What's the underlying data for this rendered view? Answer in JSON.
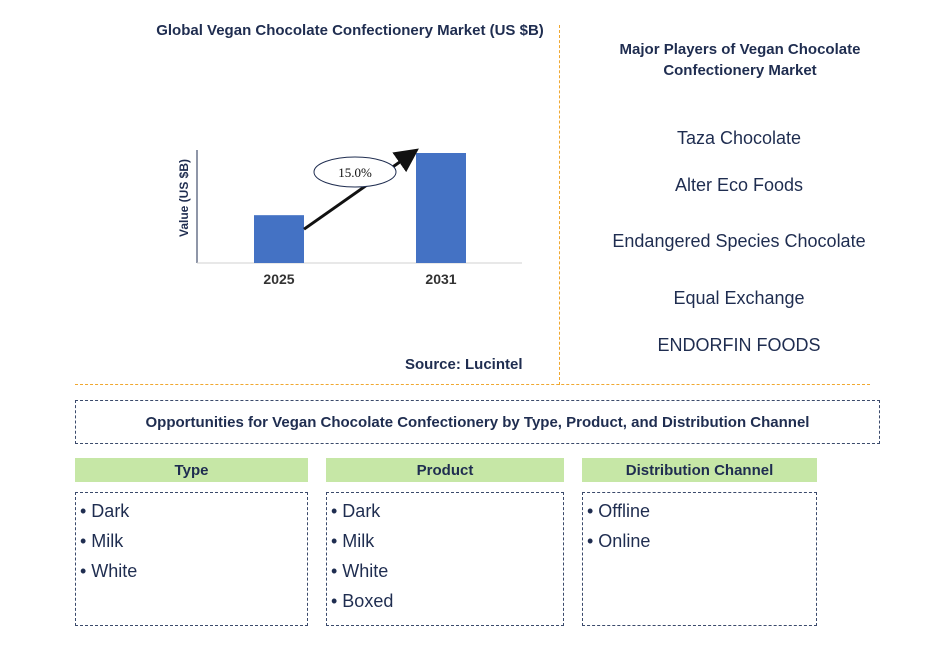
{
  "chart_data": {
    "type": "bar",
    "title": "Global Vegan Chocolate Confectionery Market (US $B)",
    "ylabel": "Value (US $B)",
    "categories": [
      "2025",
      "2031"
    ],
    "values": [
      1.0,
      2.3
    ],
    "annotation": "15.0%",
    "bar_color": "#4472c4"
  },
  "source": "Source: Lucintel",
  "players": {
    "title": "Major Players of Vegan Chocolate Confectionery Market",
    "items": [
      "Taza Chocolate",
      "Alter Eco Foods",
      "Endangered Species Chocolate",
      "Equal Exchange",
      "ENDORFIN FOODS"
    ]
  },
  "opportunities": {
    "title": "Opportunities for Vegan Chocolate Confectionery by Type, Product, and Distribution Channel",
    "columns": [
      {
        "header": "Type",
        "items": [
          "• Dark",
          "• Milk",
          "• White"
        ]
      },
      {
        "header": "Product",
        "items": [
          "• Dark",
          "• Milk",
          "• White",
          "• Boxed"
        ]
      },
      {
        "header": "Distribution Channel",
        "items": [
          "• Offline",
          "• Online"
        ]
      }
    ]
  },
  "colors": {
    "text": "#1f2d50",
    "header_bg": "#c6e7a6",
    "divider": "#f0a830"
  }
}
